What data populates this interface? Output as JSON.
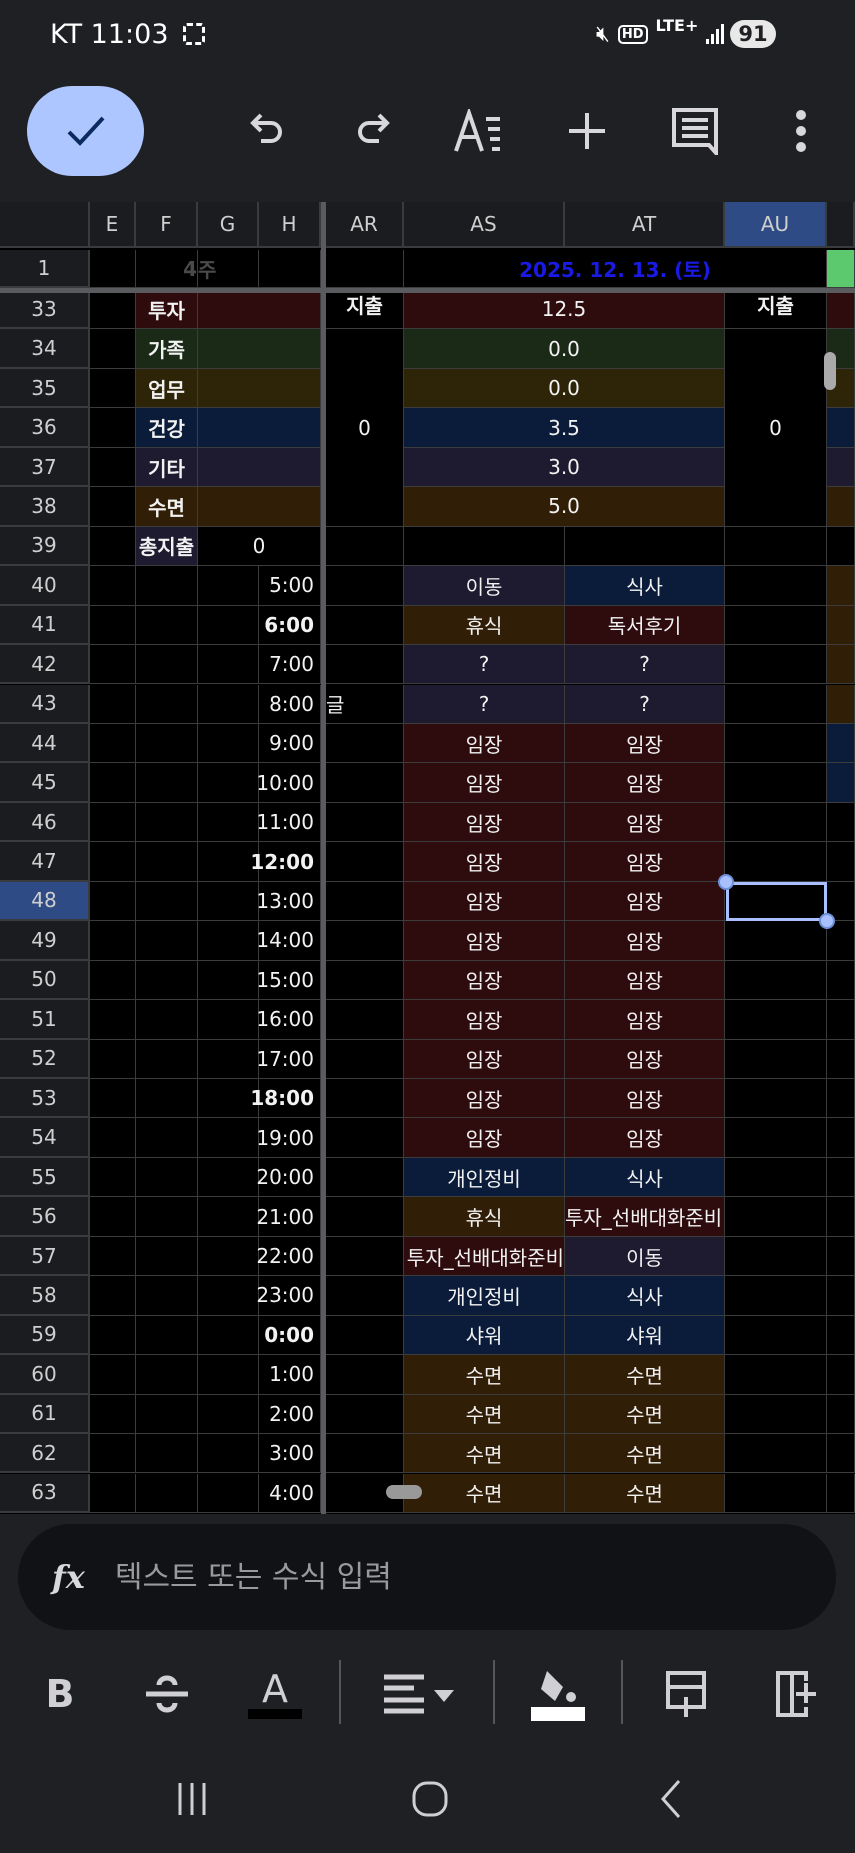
{
  "status_bar": {
    "carrier_time": "KT 11:03",
    "network": "LTE+",
    "hd": "HD",
    "battery": "91"
  },
  "toolbar": {
    "confirm": "check-icon",
    "undo": "undo-icon",
    "redo": "redo-icon",
    "format": "text-format-icon",
    "insert": "plus-icon",
    "comment": "comment-icon",
    "more": "more-vert-icon"
  },
  "colors": {
    "invest": "#2e0c0e",
    "family": "#1a2a17",
    "work": "#2e2408",
    "health": "#0b1c3a",
    "other": "#1e1a2f",
    "sleep": "#311e07",
    "accent_blue": "#1a1ae6",
    "green": "#5cc96f",
    "selected_header": "#2f4b85",
    "selection": "#a8c0ff"
  },
  "columns": [
    "E",
    "F",
    "G",
    "H",
    "AR",
    "AS",
    "AT",
    "AU"
  ],
  "selected_cell": "AU48",
  "row1": {
    "num": "1",
    "week_num": "4",
    "week_label": "주",
    "date": "2025. 12. 13. (토)"
  },
  "summary": {
    "ar_header": "지출",
    "ar_value": "0",
    "au_header": "지출",
    "au_value": "0",
    "rows": [
      {
        "num": "33",
        "label": "투자",
        "color": "invest",
        "value": "12.5"
      },
      {
        "num": "34",
        "label": "가족",
        "color": "family",
        "value": "0.0"
      },
      {
        "num": "35",
        "label": "업무",
        "color": "work",
        "value": "0.0"
      },
      {
        "num": "36",
        "label": "건강",
        "color": "health",
        "value": "3.5"
      },
      {
        "num": "37",
        "label": "기타",
        "color": "other",
        "value": "3.0"
      },
      {
        "num": "38",
        "label": "수면",
        "color": "sleep",
        "value": "5.0"
      }
    ],
    "total": {
      "num": "39",
      "label": "총지출",
      "value": "0"
    }
  },
  "schedule": [
    {
      "num": "40",
      "time": "5:00",
      "as": "이동",
      "asc": "other",
      "at": "식사",
      "atc": "health",
      "nx": "sleep"
    },
    {
      "num": "41",
      "time": "6:00",
      "bold": true,
      "as": "휴식",
      "asc": "sleep",
      "at": "독서후기",
      "atc": "invest",
      "nx": "sleep"
    },
    {
      "num": "42",
      "time": "7:00",
      "as": "?",
      "asc": "other",
      "at": "?",
      "atc": "other",
      "nx": "sleep"
    },
    {
      "num": "43",
      "time": "8:00",
      "ar": "글",
      "as": "?",
      "asc": "other",
      "at": "?",
      "atc": "other",
      "nx": "sleep"
    },
    {
      "num": "44",
      "time": "9:00",
      "as": "임장",
      "asc": "invest",
      "at": "임장",
      "atc": "invest",
      "nx": "health"
    },
    {
      "num": "45",
      "time": "10:00",
      "as": "임장",
      "asc": "invest",
      "at": "임장",
      "atc": "invest",
      "nx": "health"
    },
    {
      "num": "46",
      "time": "11:00",
      "as": "임장",
      "asc": "invest",
      "at": "임장",
      "atc": "invest"
    },
    {
      "num": "47",
      "time": "12:00",
      "bold": true,
      "as": "임장",
      "asc": "invest",
      "at": "임장",
      "atc": "invest"
    },
    {
      "num": "48",
      "time": "13:00",
      "as": "임장",
      "asc": "invest",
      "at": "임장",
      "atc": "invest"
    },
    {
      "num": "49",
      "time": "14:00",
      "as": "임장",
      "asc": "invest",
      "at": "임장",
      "atc": "invest"
    },
    {
      "num": "50",
      "time": "15:00",
      "as": "임장",
      "asc": "invest",
      "at": "임장",
      "atc": "invest"
    },
    {
      "num": "51",
      "time": "16:00",
      "as": "임장",
      "asc": "invest",
      "at": "임장",
      "atc": "invest"
    },
    {
      "num": "52",
      "time": "17:00",
      "as": "임장",
      "asc": "invest",
      "at": "임장",
      "atc": "invest"
    },
    {
      "num": "53",
      "time": "18:00",
      "bold": true,
      "as": "임장",
      "asc": "invest",
      "at": "임장",
      "atc": "invest"
    },
    {
      "num": "54",
      "time": "19:00",
      "as": "임장",
      "asc": "invest",
      "at": "임장",
      "atc": "invest"
    },
    {
      "num": "55",
      "time": "20:00",
      "as": "개인정비",
      "asc": "health",
      "at": "식사",
      "atc": "health"
    },
    {
      "num": "56",
      "time": "21:00",
      "as": "휴식",
      "asc": "sleep",
      "at": "투자_선배대화준비",
      "atc": "invest"
    },
    {
      "num": "57",
      "time": "22:00",
      "as": "투자_선배대화준비",
      "asc": "invest",
      "at": "이동",
      "atc": "other"
    },
    {
      "num": "58",
      "time": "23:00",
      "as": "개인정비",
      "asc": "health",
      "at": "식사",
      "atc": "health"
    },
    {
      "num": "59",
      "time": "0:00",
      "bold": true,
      "as": "샤워",
      "asc": "health",
      "at": "샤워",
      "atc": "health"
    },
    {
      "num": "60",
      "time": "1:00",
      "as": "수면",
      "asc": "sleep",
      "at": "수면",
      "atc": "sleep"
    },
    {
      "num": "61",
      "time": "2:00",
      "as": "수면",
      "asc": "sleep",
      "at": "수면",
      "atc": "sleep"
    },
    {
      "num": "62",
      "time": "3:00",
      "as": "수면",
      "asc": "sleep",
      "at": "수면",
      "atc": "sleep"
    },
    {
      "num": "63",
      "time": "4:00",
      "as": "수면",
      "asc": "sleep",
      "at": "수면",
      "atc": "sleep"
    }
  ],
  "formula_bar": {
    "placeholder": "텍스트 또는 수식 입력"
  },
  "format_toolbar": {
    "bold": "B",
    "text_color": "A"
  }
}
